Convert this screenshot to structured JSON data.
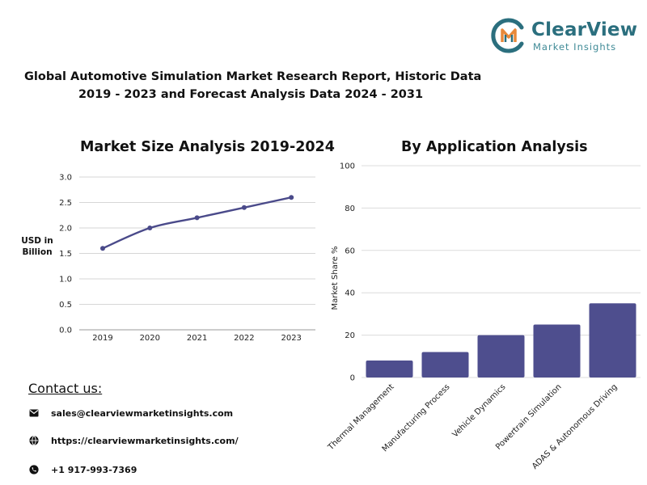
{
  "brand": {
    "name": "ClearView",
    "tagline": "Market Insights",
    "logo_icon": "cv-monogram-icon",
    "colors": {
      "teal": "#2b6f7e",
      "orange": "#e8893a"
    }
  },
  "report": {
    "title_line1": "Global Automotive Simulation Market Research Report, Historic Data",
    "title_line2": "2019 - 2023 and Forecast Analysis Data 2024 - 2031"
  },
  "chart_data": [
    {
      "type": "line",
      "title": "Market Size Analysis 2019-2024",
      "ylabel": "USD in Billion",
      "xlabel": "",
      "x": [
        "2019",
        "2020",
        "2021",
        "2022",
        "2023"
      ],
      "values": [
        1.6,
        2.0,
        2.2,
        2.4,
        2.6
      ],
      "ylim": [
        0,
        3.0
      ],
      "yticks": [
        "0.0",
        "0.5",
        "1.0",
        "1.5",
        "2.0",
        "2.5",
        "3.0"
      ],
      "grid": true,
      "color": "#4a4a8a"
    },
    {
      "type": "bar",
      "title": "By Application Analysis",
      "ylabel": "Market Share %",
      "xlabel": "",
      "categories": [
        "Thermal Management",
        "Manufacturing Process",
        "Vehicle Dynamics",
        "Powertrain Simulation",
        "ADAS & Autonomous Driving"
      ],
      "values": [
        8,
        12,
        20,
        25,
        35
      ],
      "ylim": [
        0,
        100
      ],
      "yticks": [
        "0",
        "20",
        "40",
        "60",
        "80",
        "100"
      ],
      "grid": true,
      "color": "#4e4e8e"
    }
  ],
  "contact": {
    "heading": "Contact us:",
    "email": "sales@clearviewmarketinsights.com",
    "email_icon": "envelope-icon",
    "website": "https://clearviewmarketinsights.com/",
    "website_icon": "globe-icon",
    "phone": "+1 917-993-7369",
    "phone_icon": "phone-icon"
  }
}
